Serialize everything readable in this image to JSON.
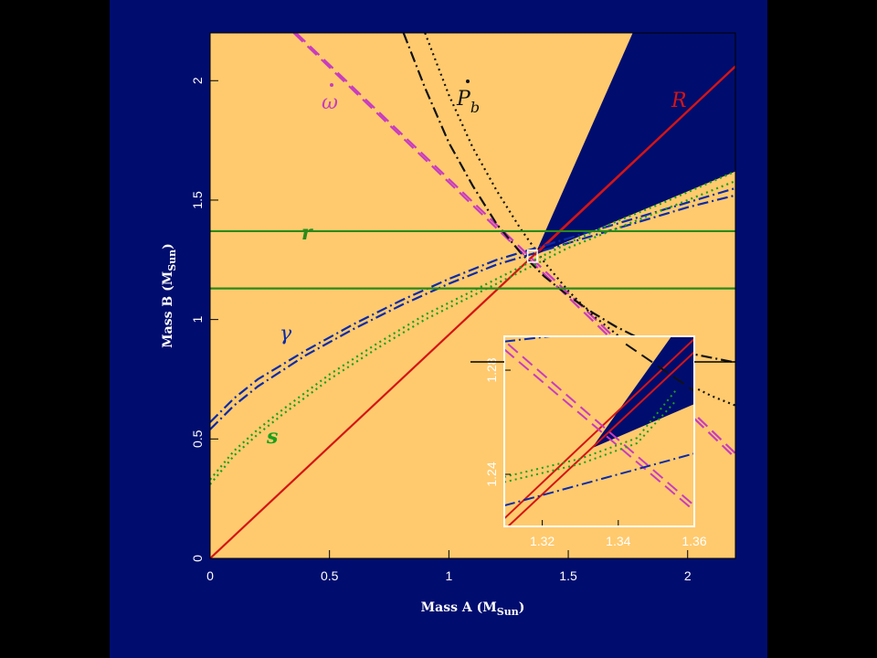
{
  "colors": {
    "background": "#000d6e",
    "allowed_region": "#ffca6e",
    "R": "#d41515",
    "omega_dot": "#c83cbe",
    "Pb_dot": "#111111",
    "gamma": "#0a2aa8",
    "s": "#1aa01a",
    "r": "#2a8a1a"
  },
  "chart_data": [
    {
      "type": "line",
      "xlabel": "Mass A (M",
      "xlabel_sub": "Sun",
      "xlabel_close": ")",
      "ylabel": "Mass B (M",
      "ylabel_sub": "Sun",
      "ylabel_close": ")",
      "xlim": [
        0,
        2.2
      ],
      "ylim": [
        0,
        2.2
      ],
      "xticks": [
        0,
        0.5,
        1,
        1.5,
        2
      ],
      "xtick_labels": [
        "0",
        "0.5",
        "1",
        "1.5",
        "2"
      ],
      "yticks": [
        0,
        0.5,
        1,
        1.5,
        2
      ],
      "ytick_labels": [
        "0",
        "0.5",
        "1",
        "1.5",
        "2"
      ],
      "series_labels": {
        "omega_dot": "ω",
        "Pb_dot": "P",
        "Pb_sub": "b",
        "R": "R",
        "r": "r",
        "gamma": "γ",
        "s": "s"
      },
      "series": [
        {
          "key": "R",
          "style": "solid",
          "x": [
            0,
            2.2
          ],
          "y": [
            0,
            2.06
          ]
        },
        {
          "key": "R_upper",
          "style": "solid",
          "x": [
            1.36,
            2.2
          ],
          "y": [
            1.27,
            2.06
          ]
        },
        {
          "key": "omega_dot_1",
          "style": "dashed",
          "x": [
            0.35,
            2.2
          ],
          "y": [
            2.2,
            0.42
          ]
        },
        {
          "key": "omega_dot_2",
          "style": "dashed",
          "x": [
            0.36,
            2.2
          ],
          "y": [
            2.2,
            0.44
          ]
        },
        {
          "key": "Pb_dot_1",
          "style": "dashdot",
          "x": [
            0.81,
            0.9,
            1.0,
            1.1,
            1.2,
            1.3,
            1.4,
            1.5,
            1.6,
            1.7,
            1.8,
            1.9,
            2.0,
            2.1,
            2.2
          ],
          "y": [
            2.2,
            1.97,
            1.74,
            1.56,
            1.4,
            1.28,
            1.18,
            1.1,
            1.03,
            0.97,
            0.92,
            0.88,
            0.86,
            0.84,
            0.82
          ]
        },
        {
          "key": "Pb_dot_2",
          "style": "dotted",
          "x": [
            0.9,
            1.0,
            1.1,
            1.2,
            1.3,
            1.4,
            1.5,
            1.6,
            1.7,
            1.8,
            1.9,
            2.0,
            2.1,
            2.2
          ],
          "y": [
            2.2,
            1.94,
            1.72,
            1.54,
            1.38,
            1.24,
            1.12,
            1.02,
            0.94,
            0.86,
            0.79,
            0.73,
            0.68,
            0.64
          ]
        },
        {
          "key": "gamma_1",
          "style": "dashdot",
          "x": [
            0,
            0.1,
            0.2,
            0.4,
            0.6,
            0.8,
            1.0,
            1.2,
            1.4,
            1.6,
            1.8,
            2.0,
            2.2
          ],
          "y": [
            0.54,
            0.64,
            0.72,
            0.85,
            0.96,
            1.06,
            1.15,
            1.23,
            1.29,
            1.35,
            1.41,
            1.47,
            1.52
          ]
        },
        {
          "key": "gamma_2",
          "style": "dashdot",
          "x": [
            0,
            0.1,
            0.2,
            0.4,
            0.6,
            0.8,
            1.0,
            1.2,
            1.4,
            1.6,
            1.8,
            2.0,
            2.2
          ],
          "y": [
            0.57,
            0.67,
            0.75,
            0.87,
            0.98,
            1.08,
            1.17,
            1.25,
            1.31,
            1.37,
            1.43,
            1.49,
            1.55
          ]
        },
        {
          "key": "s_1",
          "style": "dotted",
          "x": [
            0,
            0.1,
            0.2,
            0.3,
            0.5,
            0.7,
            0.9,
            1.1,
            1.3,
            1.5,
            1.7,
            1.9,
            2.2
          ],
          "y": [
            0.31,
            0.43,
            0.52,
            0.6,
            0.75,
            0.88,
            1.0,
            1.1,
            1.2,
            1.3,
            1.38,
            1.46,
            1.58
          ]
        },
        {
          "key": "s_2",
          "style": "dotted",
          "x": [
            0,
            0.1,
            0.2,
            0.3,
            0.5,
            0.7,
            0.9,
            1.1,
            1.3,
            1.5,
            1.7,
            1.9,
            2.2
          ],
          "y": [
            0.33,
            0.45,
            0.54,
            0.62,
            0.77,
            0.9,
            1.02,
            1.12,
            1.22,
            1.32,
            1.41,
            1.49,
            1.62
          ]
        },
        {
          "key": "r_1",
          "style": "solid",
          "x": [
            0,
            2.2
          ],
          "y": [
            1.37,
            1.37
          ]
        },
        {
          "key": "r_2",
          "style": "solid",
          "x": [
            0,
            2.2
          ],
          "y": [
            1.13,
            1.13
          ]
        }
      ],
      "excluded_region": {
        "x": [
          1.36,
          1.77,
          2.2,
          2.2
        ],
        "y": [
          1.27,
          2.2,
          2.2,
          1.62
        ]
      },
      "grid": false
    },
    {
      "type": "line",
      "inset": true,
      "xlim": [
        1.31,
        1.36
      ],
      "ylim": [
        1.22,
        1.293
      ],
      "xticks": [
        1.32,
        1.34,
        1.36
      ],
      "xtick_labels": [
        "1.32",
        "1.34",
        "1.36"
      ],
      "yticks": [
        1.24,
        1.28
      ],
      "ytick_labels": [
        "1.24",
        "1.28"
      ],
      "series": [
        {
          "key": "R_1",
          "style": "solid",
          "x": [
            1.31,
            1.36
          ],
          "y": [
            1.223,
            1.292
          ]
        },
        {
          "key": "R_2",
          "style": "solid",
          "x": [
            1.311,
            1.36
          ],
          "y": [
            1.22,
            1.287
          ]
        },
        {
          "key": "omega_dot_1",
          "style": "dashed",
          "x": [
            1.31,
            1.36
          ],
          "y": [
            1.288,
            1.226
          ]
        },
        {
          "key": "omega_dot_2",
          "style": "dashed",
          "x": [
            1.311,
            1.36
          ],
          "y": [
            1.29,
            1.228
          ]
        },
        {
          "key": "gamma_1",
          "style": "dashdot",
          "x": [
            1.31,
            1.36
          ],
          "y": [
            1.228,
            1.248
          ]
        },
        {
          "key": "gamma_2",
          "style": "dashdot",
          "x": [
            1.31,
            1.322
          ],
          "y": [
            1.291,
            1.293
          ]
        },
        {
          "key": "s_1",
          "style": "dotted",
          "x": [
            1.31,
            1.33,
            1.345,
            1.355
          ],
          "y": [
            1.237,
            1.244,
            1.252,
            1.268
          ]
        },
        {
          "key": "s_2",
          "style": "dotted",
          "x": [
            1.31,
            1.33,
            1.345,
            1.355
          ],
          "y": [
            1.239,
            1.246,
            1.254,
            1.272
          ]
        },
        {
          "key": "Pb_dot_1",
          "style": "dashed",
          "x": [
            1.342,
            1.36
          ],
          "y": [
            1.29,
            1.272
          ]
        }
      ],
      "excluded_region": {
        "x": [
          1.333,
          1.354,
          1.36,
          1.36
        ],
        "y": [
          1.25,
          1.293,
          1.293,
          1.267
        ]
      },
      "grid": false
    }
  ]
}
